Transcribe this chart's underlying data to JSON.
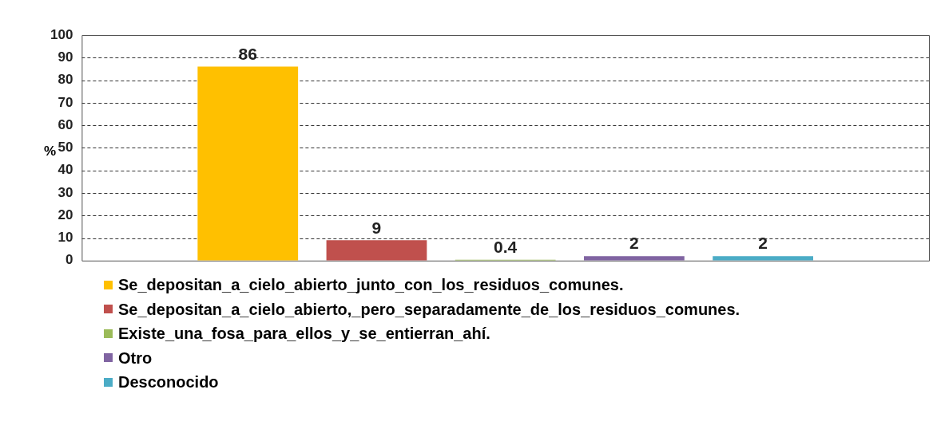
{
  "chart_data": {
    "type": "bar",
    "ylabel": "%",
    "categories": [
      null
    ],
    "series": [
      {
        "name": "Se_depositan_a_cielo_abierto_junto_con_los_residuos_comunes.",
        "color": "#ffc000",
        "values": [
          86
        ]
      },
      {
        "name": "Se_depositan_a_cielo_abierto,_pero_separadamente_de_los_residuos_comunes.",
        "color": "#c0504d",
        "values": [
          9
        ]
      },
      {
        "name": "Existe_una_fosa_para_ellos_y_se_entierran_ahí.",
        "color": "#9bbb59",
        "values": [
          0.4
        ]
      },
      {
        "name": "Otro",
        "color": "#8064a2",
        "values": [
          2
        ]
      },
      {
        "name": "Desconocido",
        "color": "#4bacc6",
        "values": [
          2
        ]
      }
    ],
    "ylim": [
      0,
      100
    ],
    "yticks": [
      0,
      10,
      20,
      30,
      40,
      50,
      60,
      70,
      80,
      90,
      100
    ],
    "grid": "y",
    "legend": "bottom",
    "data_labels": true
  }
}
